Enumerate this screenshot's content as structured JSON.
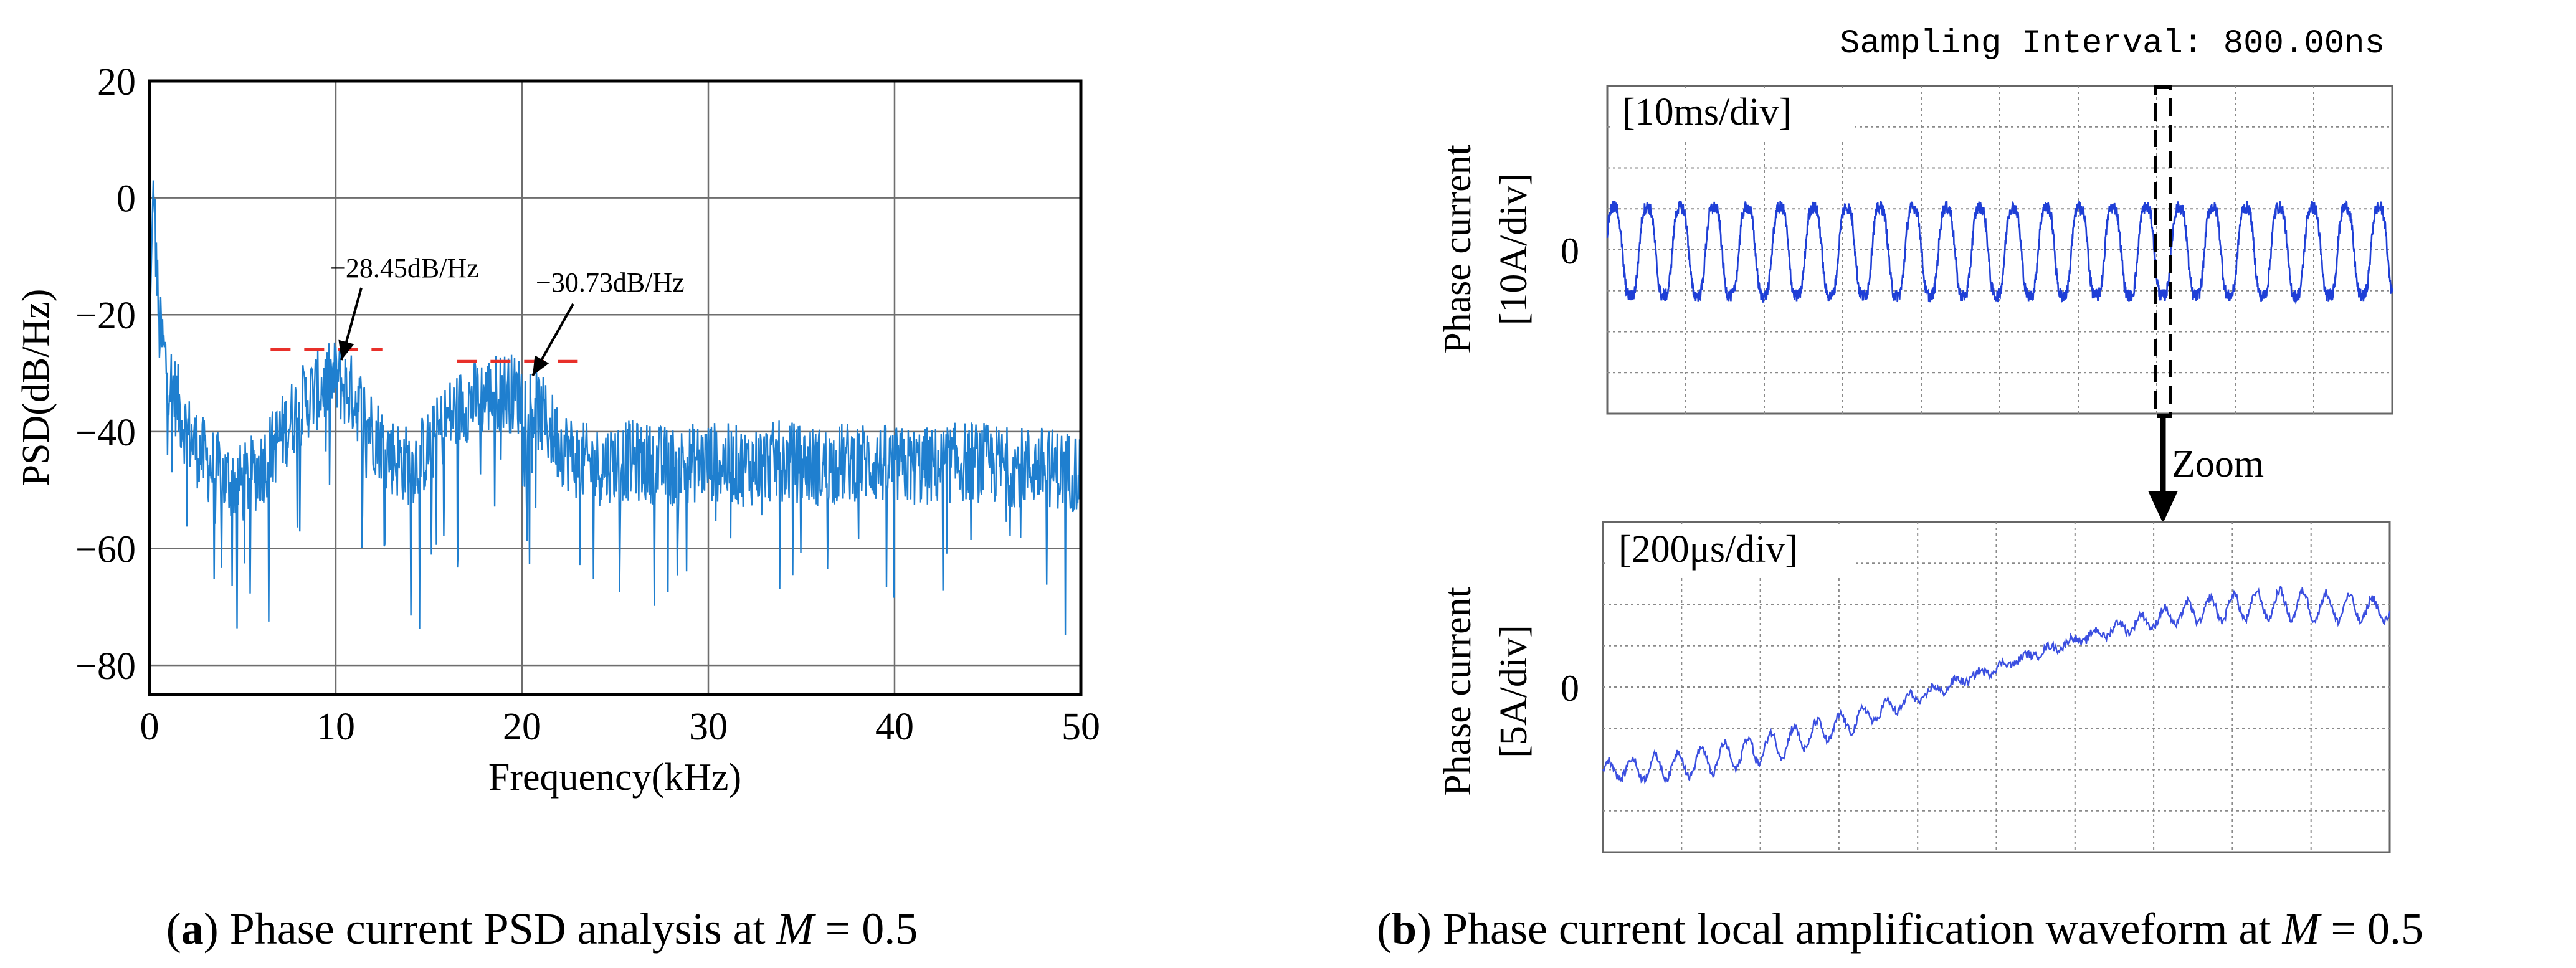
{
  "chart_data": [
    {
      "type": "line",
      "panel": "a",
      "title": "",
      "xlabel": "Frequency(kHz)",
      "ylabel": "PSD(dB/Hz)",
      "xlim": [
        0,
        50
      ],
      "ylim": [
        -85,
        20
      ],
      "xticks": [
        0,
        10,
        20,
        30,
        40,
        50
      ],
      "xtick_labels": [
        "0",
        "10",
        "20",
        "30",
        "40",
        "50"
      ],
      "yticks": [
        20,
        0,
        -20,
        -40,
        -60,
        -80
      ],
      "ytick_labels": [
        "20",
        "0",
        "−20",
        "−40",
        "−60",
        "−80"
      ],
      "grid": true,
      "series": [
        {
          "name": "PSD",
          "color": "#1f7fcf",
          "x": [
            0,
            0.2,
            0.5,
            1,
            2,
            3,
            4,
            5,
            6,
            7,
            8,
            9,
            10,
            11,
            12,
            13,
            14,
            15,
            16,
            17,
            18,
            19,
            20,
            21,
            22,
            23,
            24,
            25,
            26,
            28,
            30,
            32,
            34,
            36,
            38,
            40,
            42,
            44,
            46,
            48,
            50
          ],
          "values": [
            -25,
            3,
            -22,
            -30,
            -40,
            -45,
            -48,
            -49,
            -46,
            -41,
            -36,
            -33,
            -31,
            -34,
            -40,
            -44,
            -46,
            -43,
            -38,
            -35,
            -34,
            -33,
            -34,
            -37,
            -42,
            -45,
            -46,
            -45,
            -45,
            -46,
            -45,
            -46,
            -45,
            -46,
            -45,
            -46,
            -46,
            -45,
            -46,
            -46,
            -47
          ]
        }
      ],
      "annotations": [
        {
          "text": "−28.45dB/Hz",
          "x": 10,
          "y": -28.45
        },
        {
          "text": "−30.73dB/Hz",
          "x": 20,
          "y": -30.73
        }
      ],
      "reference_lines": [
        {
          "x_from": 6.5,
          "x_to": 12.5,
          "y": -26,
          "color": "#e8302a",
          "style": "dashed"
        },
        {
          "x_from": 16.5,
          "x_to": 23,
          "y": -28,
          "color": "#e8302a",
          "style": "dashed"
        }
      ]
    },
    {
      "type": "line",
      "panel": "b-top",
      "header": "Sampling Interval:  800.00ns",
      "div_label": "[10ms/div]",
      "ylabel_line1": "Phase current",
      "ylabel_line2": "[10A/div]",
      "zero_label": "0",
      "time_per_div_ms": 10,
      "divisions": 10,
      "amplitude_per_div_A": 10,
      "signal": {
        "cycles": 23.6,
        "amplitude_div": 1.2,
        "color": "#1f3fd6"
      },
      "zoom_label": "Zoom"
    },
    {
      "type": "line",
      "panel": "b-bottom",
      "div_label": "[200μs/div]",
      "ylabel_line1": "Phase current",
      "ylabel_line2": "[5A/div]",
      "zero_label": "0",
      "time_per_div_us": 200,
      "divisions": 10,
      "amplitude_per_div_A": 5,
      "signal": {
        "trend_start_div": -2.0,
        "trend_end_div": 2.0,
        "ripple_div": 0.35,
        "color": "#3b4fe0"
      }
    }
  ],
  "captions": {
    "a": {
      "prefix": "(",
      "letter": "a",
      "mid": ") Phase current PSD analysis at ",
      "var": "M",
      "suffix": " = 0.5"
    },
    "b": {
      "prefix": "(",
      "letter": "b",
      "mid": ") Phase current local amplification waveform at ",
      "var": "M",
      "suffix": " = 0.5"
    }
  },
  "colors": {
    "psd_line": "#1f7fcf",
    "annotation_dash": "#e8302a",
    "scope_trace": "#1f3fd6",
    "grid": "#7a7a7a"
  }
}
